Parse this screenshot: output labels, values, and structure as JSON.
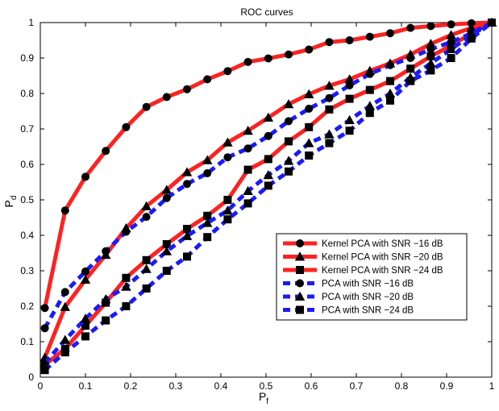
{
  "chart_data": {
    "type": "line",
    "title": "ROC curves",
    "xlabel": "P",
    "xlabel_sub": "f",
    "ylabel": "P",
    "ylabel_sub": "d",
    "xlim": [
      0,
      1
    ],
    "ylim": [
      0,
      1
    ],
    "xticks": [
      "0",
      "0.1",
      "0.2",
      "0.3",
      "0.4",
      "0.5",
      "0.6",
      "0.7",
      "0.8",
      "0.9",
      "1"
    ],
    "yticks": [
      "0",
      "0.1",
      "0.2",
      "0.3",
      "0.4",
      "0.5",
      "0.6",
      "0.7",
      "0.8",
      "0.9",
      "1"
    ],
    "grid": false,
    "legend_position": "bottom-right",
    "series": [
      {
        "name": "Kernel PCA with SNR −16 dB",
        "color": "#ff2222",
        "linestyle": "solid",
        "marker": "circle",
        "x": [
          0.01,
          0.055,
          0.1,
          0.145,
          0.19,
          0.235,
          0.28,
          0.325,
          0.37,
          0.415,
          0.46,
          0.505,
          0.55,
          0.595,
          0.64,
          0.685,
          0.73,
          0.775,
          0.82,
          0.865,
          0.91,
          0.955,
          1.0
        ],
        "y": [
          0.195,
          0.47,
          0.565,
          0.638,
          0.705,
          0.762,
          0.79,
          0.812,
          0.84,
          0.863,
          0.889,
          0.899,
          0.91,
          0.924,
          0.945,
          0.95,
          0.96,
          0.97,
          0.985,
          0.99,
          0.995,
          0.998,
          1.0
        ]
      },
      {
        "name": "Kernel PCA with SNR −20 dB",
        "color": "#ff2222",
        "linestyle": "solid",
        "marker": "triangle",
        "x": [
          0.01,
          0.055,
          0.1,
          0.145,
          0.19,
          0.235,
          0.28,
          0.325,
          0.37,
          0.415,
          0.46,
          0.505,
          0.55,
          0.595,
          0.64,
          0.685,
          0.73,
          0.775,
          0.82,
          0.865,
          0.91,
          0.955,
          1.0
        ],
        "y": [
          0.055,
          0.198,
          0.275,
          0.345,
          0.42,
          0.482,
          0.528,
          0.578,
          0.612,
          0.662,
          0.695,
          0.732,
          0.77,
          0.798,
          0.822,
          0.84,
          0.864,
          0.885,
          0.91,
          0.94,
          0.965,
          0.985,
          1.0
        ]
      },
      {
        "name": "Kernel PCA with SNR −24 dB",
        "color": "#ff2222",
        "linestyle": "solid",
        "marker": "square",
        "x": [
          0.01,
          0.055,
          0.1,
          0.145,
          0.19,
          0.235,
          0.28,
          0.325,
          0.37,
          0.415,
          0.46,
          0.505,
          0.55,
          0.595,
          0.64,
          0.685,
          0.73,
          0.775,
          0.82,
          0.865,
          0.91,
          0.955,
          1.0
        ],
        "y": [
          0.035,
          0.08,
          0.145,
          0.21,
          0.28,
          0.33,
          0.375,
          0.418,
          0.455,
          0.5,
          0.585,
          0.615,
          0.665,
          0.705,
          0.755,
          0.785,
          0.81,
          0.835,
          0.87,
          0.905,
          0.935,
          0.97,
          1.0
        ]
      },
      {
        "name": "PCA with SNR −16 dB",
        "color": "#1a1aff",
        "linestyle": "dashed",
        "marker": "circle",
        "x": [
          0.01,
          0.055,
          0.1,
          0.145,
          0.19,
          0.235,
          0.28,
          0.325,
          0.37,
          0.415,
          0.46,
          0.505,
          0.55,
          0.595,
          0.64,
          0.685,
          0.73,
          0.775,
          0.82,
          0.865,
          0.91,
          0.955,
          1.0
        ],
        "y": [
          0.138,
          0.24,
          0.298,
          0.355,
          0.41,
          0.452,
          0.505,
          0.545,
          0.575,
          0.62,
          0.645,
          0.68,
          0.722,
          0.757,
          0.787,
          0.823,
          0.855,
          0.88,
          0.9,
          0.925,
          0.945,
          0.97,
          1.0
        ]
      },
      {
        "name": "PCA with SNR −20 dB",
        "color": "#1a1aff",
        "linestyle": "dashed",
        "marker": "triangle",
        "x": [
          0.01,
          0.055,
          0.1,
          0.145,
          0.19,
          0.235,
          0.28,
          0.325,
          0.37,
          0.415,
          0.46,
          0.505,
          0.55,
          0.595,
          0.64,
          0.685,
          0.73,
          0.775,
          0.82,
          0.865,
          0.91,
          0.955,
          1.0
        ],
        "y": [
          0.04,
          0.105,
          0.165,
          0.22,
          0.255,
          0.305,
          0.355,
          0.398,
          0.435,
          0.47,
          0.525,
          0.57,
          0.61,
          0.66,
          0.685,
          0.725,
          0.765,
          0.8,
          0.845,
          0.885,
          0.925,
          0.965,
          1.0
        ]
      },
      {
        "name": "PCA with SNR −24 dB",
        "color": "#1a1aff",
        "linestyle": "dashed",
        "marker": "square",
        "x": [
          0.01,
          0.055,
          0.1,
          0.145,
          0.19,
          0.235,
          0.28,
          0.325,
          0.37,
          0.415,
          0.46,
          0.505,
          0.55,
          0.595,
          0.64,
          0.685,
          0.73,
          0.775,
          0.82,
          0.865,
          0.91,
          0.955,
          1.0
        ],
        "y": [
          0.02,
          0.07,
          0.115,
          0.16,
          0.2,
          0.25,
          0.3,
          0.34,
          0.395,
          0.445,
          0.49,
          0.54,
          0.58,
          0.625,
          0.66,
          0.695,
          0.745,
          0.78,
          0.835,
          0.865,
          0.9,
          0.955,
          1.0
        ]
      }
    ]
  }
}
